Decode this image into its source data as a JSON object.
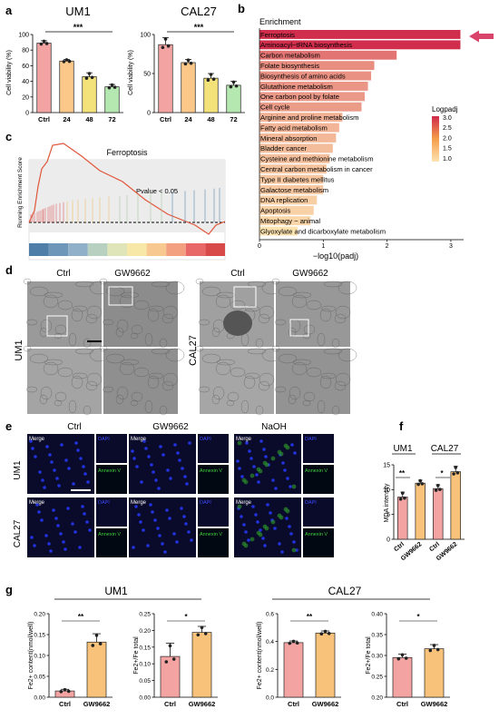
{
  "panel_labels": {
    "a": "a",
    "b": "b",
    "c": "c",
    "d": "d",
    "e": "e",
    "f": "f",
    "g": "g"
  },
  "colors": {
    "ctrl": "#f4a3a3",
    "c24": "#fbc88a",
    "c48": "#f3e27a",
    "c72": "#b5e8b0",
    "gw": "#f8c27a",
    "arrow": "#d9436b",
    "bar_dark": "#cf2a4a",
    "bar_light": "#fde3b0",
    "em_bg": "#8a8a8a",
    "fluor_bg": "#0a0a2a",
    "dapi": "#2233dd",
    "annexin": "#2a8a2a"
  },
  "panel_a": {
    "charts": [
      {
        "title": "UM1",
        "ylabel": "Cell viability (%)",
        "categories": [
          "Ctrl",
          "24",
          "48",
          "72"
        ],
        "values": [
          89,
          66,
          46,
          33
        ],
        "errors": [
          3,
          2,
          5,
          3
        ],
        "ylim": [
          0,
          100
        ],
        "yticks": [
          "0",
          "20",
          "40",
          "60",
          "80",
          "100"
        ],
        "sig": "***"
      },
      {
        "title": "CAL27",
        "ylabel": "Cell viability (%)",
        "categories": [
          "Ctrl",
          "24",
          "48",
          "72"
        ],
        "values": [
          87,
          64,
          44,
          35
        ],
        "errors": [
          9,
          4,
          6,
          5
        ],
        "ylim": [
          0,
          100
        ],
        "yticks": [
          "0",
          "50",
          "100"
        ],
        "sig": "***"
      }
    ]
  },
  "panel_b": {
    "header": "Enrichment",
    "xlabel": "−log10(padj)",
    "xticks": [
      "0",
      "1",
      "2",
      "3"
    ],
    "legend_title": "Logpadj",
    "legend_ticks": [
      "3.0",
      "2.5",
      "2.0",
      "1.5",
      "1.0"
    ],
    "terms": [
      "Ferroptosis",
      "Aminoacyl−tRNA biosynthesis",
      "Carbon metabolism",
      "Folate biosynthesis",
      "Biosynthesis of amino acids",
      "Glutathione metabolism",
      "One carbon pool by folate",
      "Cell cycle",
      "Arginine and proline metabolism",
      "Fatty acid metabolism",
      "Mineral absorption",
      "Bladder cancer",
      "Cysteine and methionine metabolism",
      "Central carbon metabolism in cancer",
      "Type II diabetes mellitus",
      "Galactose metabolism",
      "DNA replication",
      "Apoptosis",
      "Mitophagy − animal",
      "Glyoxylate and dicarboxylate metabolism"
    ],
    "values": [
      3.15,
      3.15,
      2.15,
      1.8,
      1.75,
      1.7,
      1.65,
      1.6,
      1.3,
      1.25,
      1.2,
      1.15,
      1.1,
      1.05,
      1.0,
      1.0,
      0.9,
      0.85,
      0.8,
      0.6
    ]
  },
  "panel_c": {
    "title": "Ferroptosis",
    "ylabel": "Running Enrichment Score",
    "annotation": "Pvalue < 0.05"
  },
  "panel_d": {
    "col_labels": [
      "Ctrl",
      "GW9662",
      "Ctrl",
      "GW9662"
    ],
    "row_labels": [
      "UM1",
      "CAL27"
    ]
  },
  "panel_e": {
    "col_labels": [
      "Ctrl",
      "GW9662",
      "NaOH"
    ],
    "row_labels": [
      "UM1",
      "CAL27"
    ],
    "merge": "Merge",
    "dapi": "DAPI",
    "annexin": "Annexin V"
  },
  "panel_f": {
    "ylabel": "MDA intensity",
    "groups": [
      "UM1",
      "CAL27"
    ],
    "categories": [
      "Ctrl",
      "GW9662",
      "Ctrl",
      "GW9662"
    ],
    "values": [
      8.5,
      11.3,
      10.2,
      13.6
    ],
    "errors": [
      1,
      0.6,
      0.8,
      1.1
    ],
    "ylim": [
      0,
      15
    ],
    "yticks": [
      "0",
      "5",
      "10",
      "15"
    ],
    "sig": [
      "**",
      "*"
    ]
  },
  "panel_g": {
    "group_labels": [
      "UM1",
      "CAL27"
    ],
    "charts": [
      {
        "ylabel": "Fe2+ content(nmol/well)",
        "categories": [
          "Ctrl",
          "GW9662"
        ],
        "values": [
          0.015,
          0.132
        ],
        "errors": [
          0.004,
          0.02
        ],
        "ylim": [
          0,
          0.2
        ],
        "yticks": [
          "0.00",
          "0.05",
          "0.10",
          "0.15",
          "0.20"
        ],
        "sig": "**"
      },
      {
        "ylabel": "Fe2+/Fe total",
        "categories": [
          "Ctrl",
          "GW9662"
        ],
        "values": [
          0.122,
          0.194
        ],
        "errors": [
          0.04,
          0.018
        ],
        "ylim": [
          0,
          0.25
        ],
        "yticks": [
          "0.00",
          "0.05",
          "0.10",
          "0.15",
          "0.20",
          "0.25"
        ],
        "sig": "*"
      },
      {
        "ylabel": "Fe2+ content(nmol/well)",
        "categories": [
          "Ctrl",
          "GW9662"
        ],
        "values": [
          0.392,
          0.461
        ],
        "errors": [
          0.012,
          0.015
        ],
        "ylim": [
          0.0,
          0.6
        ],
        "yticks": [
          "0.0",
          "0.2",
          "0.4",
          "0.6"
        ],
        "sig": "**"
      },
      {
        "ylabel": "Fe2+/Fe total",
        "categories": [
          "Ctrl",
          "GW9662"
        ],
        "values": [
          0.295,
          0.316
        ],
        "errors": [
          0.008,
          0.01
        ],
        "ylim": [
          0.2,
          0.4
        ],
        "yticks": [
          "0.20",
          "0.25",
          "0.30",
          "0.35",
          "0.40"
        ],
        "sig": "*"
      }
    ]
  },
  "chart_data": [
    {
      "type": "bar",
      "title": "UM1",
      "ylabel": "Cell viability (%)",
      "categories": [
        "Ctrl",
        "24",
        "48",
        "72"
      ],
      "values": [
        89,
        66,
        46,
        33
      ],
      "ylim": [
        0,
        100
      ]
    },
    {
      "type": "bar",
      "title": "CAL27",
      "ylabel": "Cell viability (%)",
      "categories": [
        "Ctrl",
        "24",
        "48",
        "72"
      ],
      "values": [
        87,
        64,
        44,
        35
      ],
      "ylim": [
        0,
        100
      ]
    },
    {
      "type": "bar",
      "xlabel": "−log10(padj)",
      "categories": [
        "Ferroptosis",
        "Aminoacyl−tRNA biosynthesis",
        "Carbon metabolism",
        "Folate biosynthesis",
        "Biosynthesis of amino acids",
        "Glutathione metabolism",
        "One carbon pool by folate",
        "Cell cycle",
        "Arginine and proline metabolism",
        "Fatty acid metabolism",
        "Mineral absorption",
        "Bladder cancer",
        "Cysteine and methionine metabolism",
        "Central carbon metabolism in cancer",
        "Type II diabetes mellitus",
        "Galactose metabolism",
        "DNA replication",
        "Apoptosis",
        "Mitophagy − animal",
        "Glyoxylate and dicarboxylate metabolism"
      ],
      "values": [
        3.15,
        3.15,
        2.15,
        1.8,
        1.75,
        1.7,
        1.65,
        1.6,
        1.3,
        1.25,
        1.2,
        1.15,
        1.1,
        1.05,
        1.0,
        1.0,
        0.9,
        0.85,
        0.8,
        0.6
      ]
    },
    {
      "type": "bar",
      "ylabel": "MDA intensity",
      "categories": [
        "Ctrl",
        "GW9662",
        "Ctrl",
        "GW9662"
      ],
      "values": [
        8.5,
        11.3,
        10.2,
        13.6
      ],
      "ylim": [
        0,
        15
      ]
    },
    {
      "type": "bar",
      "ylabel": "Fe2+ content(nmol/well)",
      "categories": [
        "Ctrl",
        "GW9662"
      ],
      "values": [
        0.015,
        0.132
      ],
      "ylim": [
        0,
        0.2
      ]
    },
    {
      "type": "bar",
      "ylabel": "Fe2+/Fe total",
      "categories": [
        "Ctrl",
        "GW9662"
      ],
      "values": [
        0.122,
        0.194
      ],
      "ylim": [
        0,
        0.25
      ]
    },
    {
      "type": "bar",
      "ylabel": "Fe2+ content(nmol/well)",
      "categories": [
        "Ctrl",
        "GW9662"
      ],
      "values": [
        0.392,
        0.461
      ],
      "ylim": [
        0,
        0.6
      ]
    },
    {
      "type": "bar",
      "ylabel": "Fe2+/Fe total",
      "categories": [
        "Ctrl",
        "GW9662"
      ],
      "values": [
        0.295,
        0.316
      ],
      "ylim": [
        0.2,
        0.4
      ]
    }
  ]
}
